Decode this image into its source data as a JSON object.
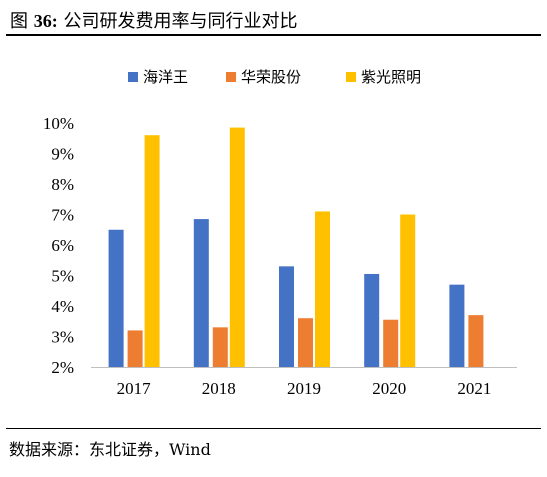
{
  "figure": {
    "label_prefix": "图",
    "number": "36:",
    "title": "公司研发费用率与同行业对比"
  },
  "source": {
    "text": "数据来源：东北证券，Wind"
  },
  "chart_data": {
    "type": "bar",
    "categories": [
      "2017",
      "2018",
      "2019",
      "2020",
      "2021"
    ],
    "series": [
      {
        "name": "海洋王",
        "color": "#4472C4",
        "values": [
          6.5,
          6.85,
          5.3,
          5.05,
          4.7
        ]
      },
      {
        "name": "华荣股份",
        "color": "#ED7D31",
        "values": [
          3.2,
          3.3,
          3.6,
          3.55,
          3.7
        ]
      },
      {
        "name": "紫光照明",
        "color": "#FFC000",
        "values": [
          9.6,
          9.85,
          7.1,
          7.0,
          null
        ]
      }
    ],
    "y_ticks": [
      "2%",
      "3%",
      "4%",
      "5%",
      "6%",
      "7%",
      "8%",
      "9%",
      "10%"
    ],
    "ylim": [
      2,
      10
    ],
    "y_unit": "%",
    "grid": false,
    "legend_position": "top"
  }
}
